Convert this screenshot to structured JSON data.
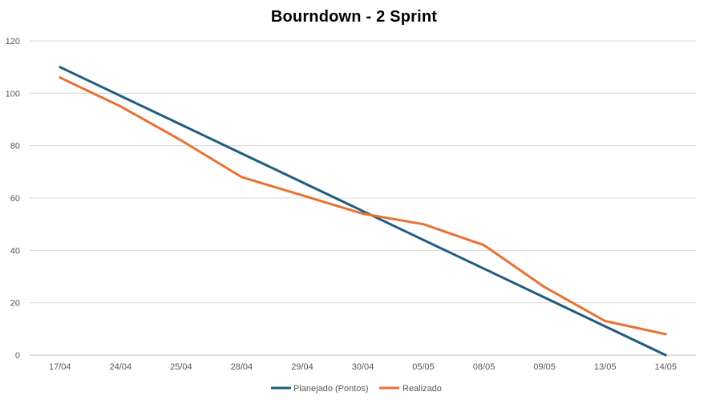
{
  "chart_data": {
    "type": "line",
    "title": "Bourndown - 2 Sprint",
    "xlabel": "",
    "ylabel": "",
    "categories": [
      "17/04",
      "24/04",
      "25/04",
      "28/04",
      "29/04",
      "30/04",
      "05/05",
      "08/05",
      "09/05",
      "13/05",
      "14/05"
    ],
    "ylim": [
      0,
      120
    ],
    "yticks": [
      0,
      20,
      40,
      60,
      80,
      100,
      120
    ],
    "grid": true,
    "legend_position": "bottom",
    "series": [
      {
        "name": "Planejado (Pontos)",
        "color": "#1F5C7E",
        "values": [
          110,
          99,
          88,
          77,
          66,
          55,
          44,
          33,
          22,
          11,
          0
        ]
      },
      {
        "name": "Realizado",
        "color": "#E97132",
        "values": [
          106,
          95,
          82,
          68,
          61,
          54,
          50,
          42,
          26,
          13,
          8
        ]
      }
    ]
  }
}
